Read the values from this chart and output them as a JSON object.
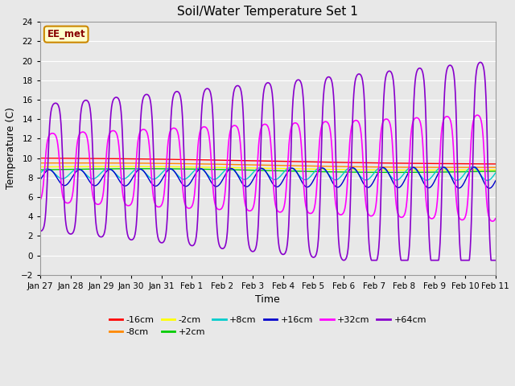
{
  "title": "Soil/Water Temperature Set 1",
  "xlabel": "Time",
  "ylabel": "Temperature (C)",
  "ylim": [
    -2,
    24
  ],
  "yticks": [
    -2,
    0,
    2,
    4,
    6,
    8,
    10,
    12,
    14,
    16,
    18,
    20,
    22,
    24
  ],
  "annotation_text": "EE_met",
  "annotation_bg": "#ffffcc",
  "annotation_border": "#cc8800",
  "annotation_text_color": "#880000",
  "series_colors": {
    "-16cm": "#ff0000",
    "-8cm": "#ff8800",
    "-2cm": "#ffff00",
    "+2cm": "#00cc00",
    "+8cm": "#00cccc",
    "+16cm": "#0000cc",
    "+32cm": "#ff00ff",
    "+64cm": "#8800cc"
  },
  "series_order": [
    "-16cm",
    "-8cm",
    "-2cm",
    "+2cm",
    "+8cm",
    "+16cm",
    "+32cm",
    "+64cm"
  ],
  "background_color": "#e8e8e8",
  "xtick_labels": [
    "Jan 27",
    "Jan 28",
    "Jan 29",
    "Jan 30",
    "Jan 31",
    "Feb 1",
    "Feb 2",
    "Feb 3",
    "Feb 4",
    "Feb 5",
    "Feb 6",
    "Feb 7",
    "Feb 8",
    "Feb 9",
    "Feb 10",
    "Feb 11"
  ],
  "figsize": [
    6.4,
    4.8
  ],
  "dpi": 100
}
